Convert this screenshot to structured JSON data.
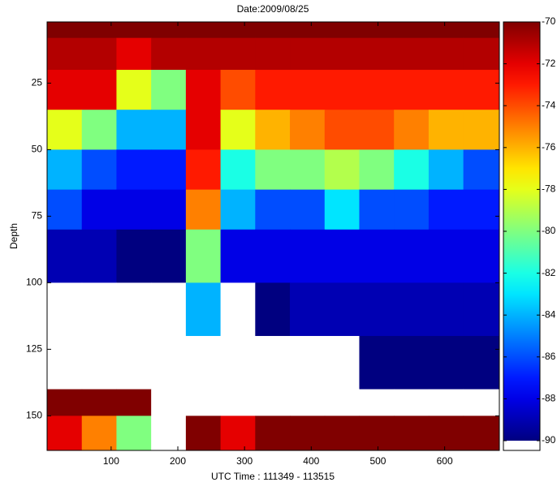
{
  "chart_data": {
    "type": "heatmap",
    "title": "Date:2009/08/25",
    "x_label": "UTC Time : 111349 - 113515",
    "y_label": "Depth",
    "xlim": [
      4,
      682
    ],
    "ylim": [
      2,
      163
    ],
    "y_reversed": true,
    "xticks": [
      100,
      200,
      300,
      400,
      500,
      600
    ],
    "yticks": [
      25,
      50,
      75,
      100,
      125,
      150
    ],
    "x_edges": [
      4,
      56,
      108,
      160,
      212,
      264,
      316,
      368,
      420,
      472,
      524,
      576,
      628,
      682
    ],
    "y_edges": [
      2,
      8,
      20,
      35,
      50,
      65,
      80,
      100,
      120,
      140,
      150,
      163
    ],
    "values": [
      [
        -69,
        -69,
        -69,
        -69,
        -69,
        -69,
        -69,
        -69,
        -69,
        -69,
        -69,
        -69,
        -69
      ],
      [
        -71,
        -71,
        -72,
        -71,
        -71,
        -71,
        -71,
        -71,
        -71,
        -71,
        -71,
        -71,
        -71
      ],
      [
        -72,
        -72,
        -78,
        -80,
        -72,
        -74,
        -73,
        -73,
        -73,
        -73,
        -73,
        -73,
        -73
      ],
      [
        -78,
        -80,
        -84,
        -84,
        -72,
        -78,
        -76,
        -75,
        -74,
        -74,
        -75,
        -76,
        -76
      ],
      [
        -84,
        -86,
        -87,
        -87,
        -73,
        -82,
        -80,
        -80,
        -79,
        -80,
        -82,
        -84,
        -86
      ],
      [
        -86,
        -88,
        -88,
        -88,
        -75,
        -84,
        -86,
        -86,
        -83,
        -86,
        -86,
        -87,
        -87
      ],
      [
        -89,
        -89,
        -90,
        -90,
        -80,
        -88,
        -88,
        -88,
        -88,
        -88,
        -88,
        -88,
        -88
      ],
      [
        -92,
        -92,
        -93,
        -93,
        -84,
        -92,
        -90,
        -89,
        -89,
        -89,
        -89,
        -89,
        -89
      ],
      [
        -93,
        -94,
        -95,
        -95,
        -95,
        -95,
        -94,
        -92,
        -91,
        -90,
        -90,
        -90,
        -90
      ],
      [
        -70,
        -70,
        -70,
        -95,
        -95,
        -95,
        -95,
        -94,
        -93,
        -92,
        -91,
        -91,
        -91
      ],
      [
        -72,
        -75,
        -80,
        -95,
        -70,
        -72,
        -70,
        -70,
        -70,
        -70,
        -70,
        -70,
        -70
      ]
    ],
    "clim": [
      -90,
      -70
    ],
    "colormap": "jet",
    "under_color": "#ffffff",
    "colorbar_ticks": [
      -70,
      -72,
      -74,
      -76,
      -78,
      -80,
      -82,
      -84,
      -86,
      -88,
      -90
    ]
  }
}
